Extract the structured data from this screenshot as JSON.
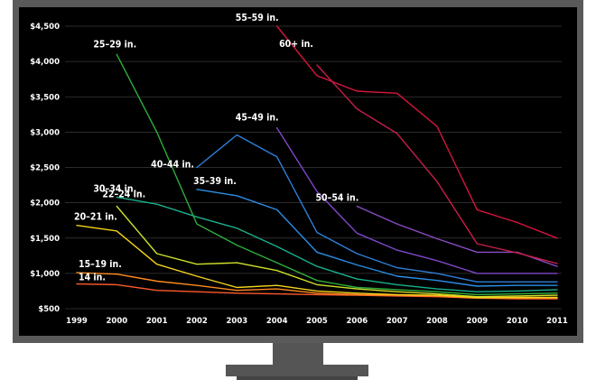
{
  "chart_data": {
    "type": "line",
    "x": [
      "1999",
      "2000",
      "2001",
      "2002",
      "2003",
      "2004",
      "2005",
      "2006",
      "2007",
      "2008",
      "2009",
      "2010",
      "2011"
    ],
    "y_ticks": [
      "$4,500",
      "$4,000",
      "$3,500",
      "$3,000",
      "$2,500",
      "$2,000",
      "$1,500",
      "$1,000",
      "$500"
    ],
    "ylim": [
      500,
      4500
    ],
    "grid": true,
    "series": [
      {
        "name": "14 in.",
        "color": "#ff5a2a",
        "values": [
          850,
          840,
          760,
          740,
          720,
          710,
          700,
          690,
          680,
          670,
          650,
          640,
          640
        ]
      },
      {
        "name": "15–19 in.",
        "color": "#ff8a1e",
        "values": [
          1010,
          990,
          890,
          830,
          760,
          780,
          720,
          700,
          690,
          680,
          650,
          650,
          650
        ]
      },
      {
        "name": "20–21 in.",
        "color": "#f3d21c",
        "values": [
          1680,
          1600,
          1130,
          960,
          800,
          830,
          750,
          720,
          700,
          690,
          660,
          660,
          660
        ]
      },
      {
        "name": "22–24 in.",
        "color": "#cfe02a",
        "values": [
          null,
          1950,
          1280,
          1130,
          1150,
          1040,
          840,
          780,
          740,
          710,
          670,
          680,
          690
        ]
      },
      {
        "name": "25–29 in.",
        "color": "#2fae3c",
        "values": [
          null,
          4100,
          3000,
          1700,
          1400,
          1150,
          900,
          800,
          770,
          740,
          700,
          710,
          720
        ]
      },
      {
        "name": "30–34 in.",
        "color": "#19b08c",
        "values": [
          null,
          2080,
          1980,
          1800,
          1640,
          1380,
          1100,
          920,
          840,
          780,
          740,
          750,
          770
        ]
      },
      {
        "name": "35–39 in.",
        "color": "#2a8ee6",
        "values": [
          null,
          null,
          null,
          2190,
          2100,
          1900,
          1300,
          1120,
          960,
          900,
          820,
          830,
          830
        ]
      },
      {
        "name": "40–44 in.",
        "color": "#2e7fd8",
        "values": [
          null,
          null,
          null,
          2500,
          2960,
          2650,
          1580,
          1280,
          1080,
          1000,
          880,
          880,
          880
        ]
      },
      {
        "name": "45–49 in.",
        "color": "#7f46c8",
        "values": [
          null,
          null,
          null,
          null,
          null,
          3060,
          2160,
          1570,
          1330,
          1180,
          1000,
          1000,
          1000
        ]
      },
      {
        "name": "50–54 in.",
        "color": "#8a4cc4",
        "values": [
          null,
          null,
          null,
          null,
          null,
          null,
          null,
          1950,
          1700,
          1490,
          1300,
          1300,
          1100
        ]
      },
      {
        "name": "60+ in.",
        "color": "#c81e4a",
        "values": [
          null,
          null,
          null,
          null,
          null,
          null,
          3950,
          3330,
          2980,
          2300,
          1420,
          1290,
          1140
        ]
      },
      {
        "name": "55–59 in.",
        "color": "#d5163a",
        "values": [
          null,
          null,
          null,
          null,
          null,
          4500,
          3800,
          3580,
          3550,
          3080,
          1900,
          1720,
          1500
        ]
      }
    ]
  }
}
